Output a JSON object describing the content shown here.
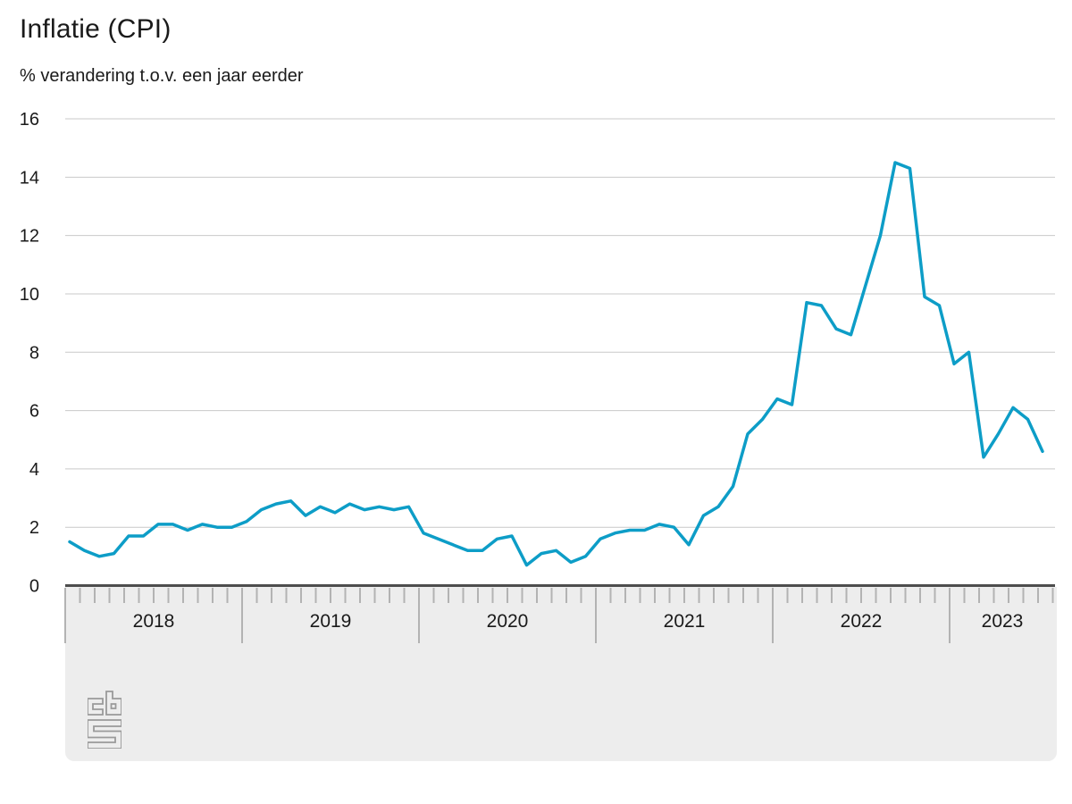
{
  "header": {
    "title": "Inflatie (CPI)",
    "subtitle": "% verandering t.o.v. een jaar eerder"
  },
  "logo": {
    "name": "CBS"
  },
  "colors": {
    "line": "#0d9dc7",
    "grid": "#c9c9c9",
    "axis_baseline": "#4d4d4d",
    "band": "#ededed",
    "tick": "#b3b3b3",
    "text": "#1a1a1a",
    "logo": "#9a9a9a"
  },
  "chart_data": {
    "type": "line",
    "title": "Inflatie (CPI)",
    "subtitle": "% verandering t.o.v. een jaar eerder",
    "unit": "%",
    "grid": true,
    "legend_position": "none",
    "ylim": [
      0,
      16
    ],
    "yticks": [
      0,
      2,
      4,
      6,
      8,
      10,
      12,
      14,
      16
    ],
    "x_year_labels": [
      "2018",
      "2019",
      "2020",
      "2021",
      "2022",
      "2023"
    ],
    "months": [
      "2018-01",
      "2018-02",
      "2018-03",
      "2018-04",
      "2018-05",
      "2018-06",
      "2018-07",
      "2018-08",
      "2018-09",
      "2018-10",
      "2018-11",
      "2018-12",
      "2019-01",
      "2019-02",
      "2019-03",
      "2019-04",
      "2019-05",
      "2019-06",
      "2019-07",
      "2019-08",
      "2019-09",
      "2019-10",
      "2019-11",
      "2019-12",
      "2020-01",
      "2020-02",
      "2020-03",
      "2020-04",
      "2020-05",
      "2020-06",
      "2020-07",
      "2020-08",
      "2020-09",
      "2020-10",
      "2020-11",
      "2020-12",
      "2021-01",
      "2021-02",
      "2021-03",
      "2021-04",
      "2021-05",
      "2021-06",
      "2021-07",
      "2021-08",
      "2021-09",
      "2021-10",
      "2021-11",
      "2021-12",
      "2022-01",
      "2022-02",
      "2022-03",
      "2022-04",
      "2022-05",
      "2022-06",
      "2022-07",
      "2022-08",
      "2022-09",
      "2022-10",
      "2022-11",
      "2022-12",
      "2023-01",
      "2023-02",
      "2023-03",
      "2023-04",
      "2023-05",
      "2023-06",
      "2023-07"
    ],
    "series": [
      {
        "name": "Inflatie (CPI)",
        "values": [
          1.5,
          1.2,
          1.0,
          1.1,
          1.7,
          1.7,
          2.1,
          2.1,
          1.9,
          2.1,
          2.0,
          2.0,
          2.2,
          2.6,
          2.8,
          2.9,
          2.4,
          2.7,
          2.5,
          2.8,
          2.6,
          2.7,
          2.6,
          2.7,
          1.8,
          1.6,
          1.4,
          1.2,
          1.2,
          1.6,
          1.7,
          0.7,
          1.1,
          1.2,
          0.8,
          1.0,
          1.6,
          1.8,
          1.9,
          1.9,
          2.1,
          2.0,
          1.4,
          2.4,
          2.7,
          3.4,
          5.2,
          5.7,
          6.4,
          6.2,
          9.7,
          9.6,
          8.8,
          8.6,
          10.3,
          12.0,
          14.5,
          14.3,
          9.9,
          9.6,
          7.6,
          8.0,
          4.4,
          5.2,
          6.1,
          5.7,
          4.6
        ]
      }
    ]
  }
}
